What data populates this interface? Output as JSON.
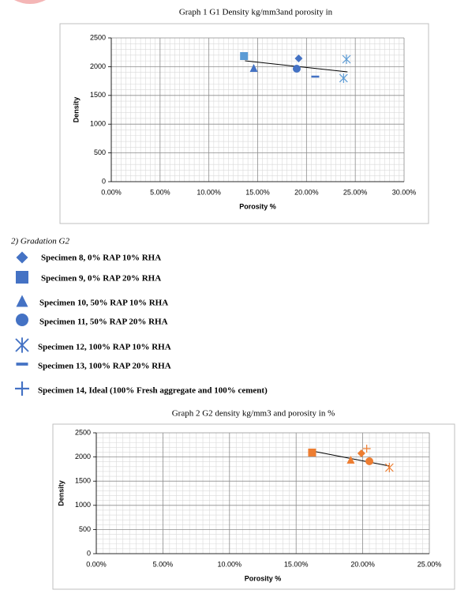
{
  "chart_data": [
    {
      "type": "scatter",
      "title": "Graph 1 G1 Density kg/mm3and porosity in",
      "x_label": "Porosity %",
      "y_label": "Density",
      "xlim": [
        0,
        30
      ],
      "ylim": [
        0,
        2500
      ],
      "xticks": [
        {
          "value": 0,
          "label": "0.00%"
        },
        {
          "value": 5,
          "label": "5.00%"
        },
        {
          "value": 10,
          "label": "10.00%"
        },
        {
          "value": 15,
          "label": "15.00%"
        },
        {
          "value": 20,
          "label": "20.00%"
        },
        {
          "value": 25,
          "label": "25.00%"
        },
        {
          "value": 30,
          "label": "30.00%"
        }
      ],
      "yticks": [
        0,
        500,
        1000,
        1500,
        2000,
        2500
      ],
      "grid": true,
      "minor_grid": true,
      "series": [
        {
          "marker": "diamond",
          "color": "#4472c4",
          "x": [
            19.2
          ],
          "values": [
            2143
          ]
        },
        {
          "marker": "square",
          "color": "#5b9bd5",
          "x": [
            13.6
          ],
          "values": [
            2184
          ]
        },
        {
          "marker": "triangle",
          "color": "#4472c4",
          "x": [
            14.6
          ],
          "values": [
            1978
          ]
        },
        {
          "marker": "circle",
          "color": "#4472c4",
          "x": [
            19.0
          ],
          "values": [
            1964
          ]
        },
        {
          "marker": "asterisk",
          "color": "#5b9bd5",
          "x": [
            24.1,
            23.8
          ],
          "values": [
            2129,
            1800
          ]
        },
        {
          "marker": "dash",
          "color": "#4472c4",
          "x": [
            20.9
          ],
          "values": [
            1827
          ]
        }
      ],
      "trendline": {
        "color": "#000000",
        "x": [
          13.7,
          24.2
        ],
        "values": [
          2102,
          1909
        ]
      }
    },
    {
      "type": "scatter",
      "title": "Graph 2 G2 density kg/mm3 and porosity in %",
      "x_label": "Porosity %",
      "y_label": "Density",
      "xlim": [
        0,
        25
      ],
      "ylim": [
        0,
        2500
      ],
      "xticks": [
        {
          "value": 0,
          "label": "0.00%"
        },
        {
          "value": 5,
          "label": "5.00%"
        },
        {
          "value": 10,
          "label": "10.00%"
        },
        {
          "value": 15,
          "label": "15.00%"
        },
        {
          "value": 20,
          "label": "20.00%"
        },
        {
          "value": 25,
          "label": "25.00%"
        }
      ],
      "yticks": [
        0,
        500,
        1000,
        1500,
        2000,
        2500
      ],
      "grid": true,
      "minor_grid": true,
      "series": [
        {
          "marker": "diamond",
          "color": "#ed7d31",
          "x": [
            19.9
          ],
          "values": [
            2075
          ]
        },
        {
          "marker": "square",
          "color": "#ed7d31",
          "x": [
            16.2
          ],
          "values": [
            2092
          ]
        },
        {
          "marker": "triangle",
          "color": "#ed7d31",
          "x": [
            19.1
          ],
          "values": [
            1945
          ]
        },
        {
          "marker": "circle",
          "color": "#ed7d31",
          "x": [
            20.5
          ],
          "values": [
            1912
          ]
        },
        {
          "marker": "asterisk",
          "color": "#ed7d31",
          "x": [
            22.0
          ],
          "values": [
            1781
          ]
        },
        {
          "marker": "plus",
          "color": "#ed7d31",
          "x": [
            20.3
          ],
          "values": [
            2173
          ]
        }
      ],
      "trendline": {
        "color": "#000000",
        "x": [
          16.2,
          22.0
        ],
        "values": [
          2124,
          1814
        ]
      }
    }
  ],
  "section_heading": "2)   Gradation G2",
  "legend_items": [
    "Specimen 8, 0% RAP 10% RHA",
    "Specimen 9, 0% RAP 20% RHA",
    "Specimen 10, 50% RAP 10% RHA",
    "Specimen 11, 50% RAP 20% RHA",
    "Specimen 12, 100% RAP 10% RHA",
    "Specimen 13, 100% RAP 20% RHA",
    "Specimen 14, Ideal (100% Fresh aggregate and 100% cement)"
  ],
  "legend_color": "#4472c4"
}
